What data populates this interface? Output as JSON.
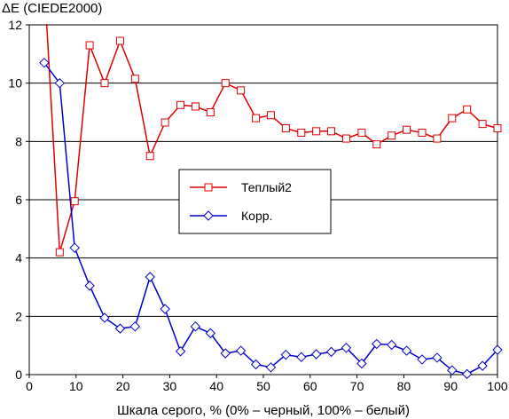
{
  "chart_data": {
    "type": "line",
    "title": "",
    "ylabel": "ΔE (CIEDE2000)",
    "xlabel": "Шкала серого, % (0% – черный, 100% – белый)",
    "xlim": [
      0,
      100
    ],
    "ylim": [
      0,
      12
    ],
    "xticks": [
      "0",
      "10",
      "20",
      "30",
      "40",
      "50",
      "60",
      "70",
      "80",
      "90",
      "100"
    ],
    "yticks": [
      "0",
      "2",
      "4",
      "6",
      "8",
      "10",
      "12"
    ],
    "grid": "horizontal",
    "legend_position": "center",
    "series": [
      {
        "name": "Теплый2",
        "color": "#e00000",
        "marker": "square",
        "x": [
          3.2,
          6.5,
          9.7,
          12.9,
          16.1,
          19.4,
          22.6,
          25.8,
          29.0,
          32.3,
          35.5,
          38.7,
          41.9,
          45.2,
          48.4,
          51.6,
          54.8,
          58.1,
          61.3,
          64.5,
          67.7,
          71.0,
          74.2,
          77.4,
          80.6,
          83.9,
          87.1,
          90.3,
          93.5,
          96.8,
          100.0
        ],
        "y": [
          13.5,
          4.2,
          5.95,
          11.3,
          10.0,
          11.45,
          10.15,
          7.5,
          8.65,
          9.25,
          9.2,
          9.0,
          10.0,
          9.75,
          8.8,
          8.9,
          8.45,
          8.3,
          8.35,
          8.35,
          8.1,
          8.3,
          7.9,
          8.2,
          8.4,
          8.3,
          8.1,
          8.8,
          9.1,
          8.6,
          8.45
        ]
      },
      {
        "name": "Корр.",
        "color": "#0000cc",
        "marker": "diamond",
        "x": [
          3.2,
          6.5,
          9.7,
          12.9,
          16.1,
          19.4,
          22.6,
          25.8,
          29.0,
          32.3,
          35.5,
          38.7,
          41.9,
          45.2,
          48.4,
          51.6,
          54.8,
          58.1,
          61.3,
          64.5,
          67.7,
          71.0,
          74.2,
          77.4,
          80.6,
          83.9,
          87.1,
          90.3,
          93.5,
          96.8,
          100.0
        ],
        "y": [
          10.7,
          10.0,
          4.35,
          3.05,
          1.95,
          1.58,
          1.65,
          3.35,
          2.25,
          0.8,
          1.65,
          1.42,
          0.73,
          0.82,
          0.35,
          0.25,
          0.68,
          0.6,
          0.7,
          0.78,
          0.92,
          0.38,
          1.05,
          1.02,
          0.82,
          0.52,
          0.58,
          0.15,
          0.02,
          0.3,
          0.85
        ]
      }
    ]
  }
}
